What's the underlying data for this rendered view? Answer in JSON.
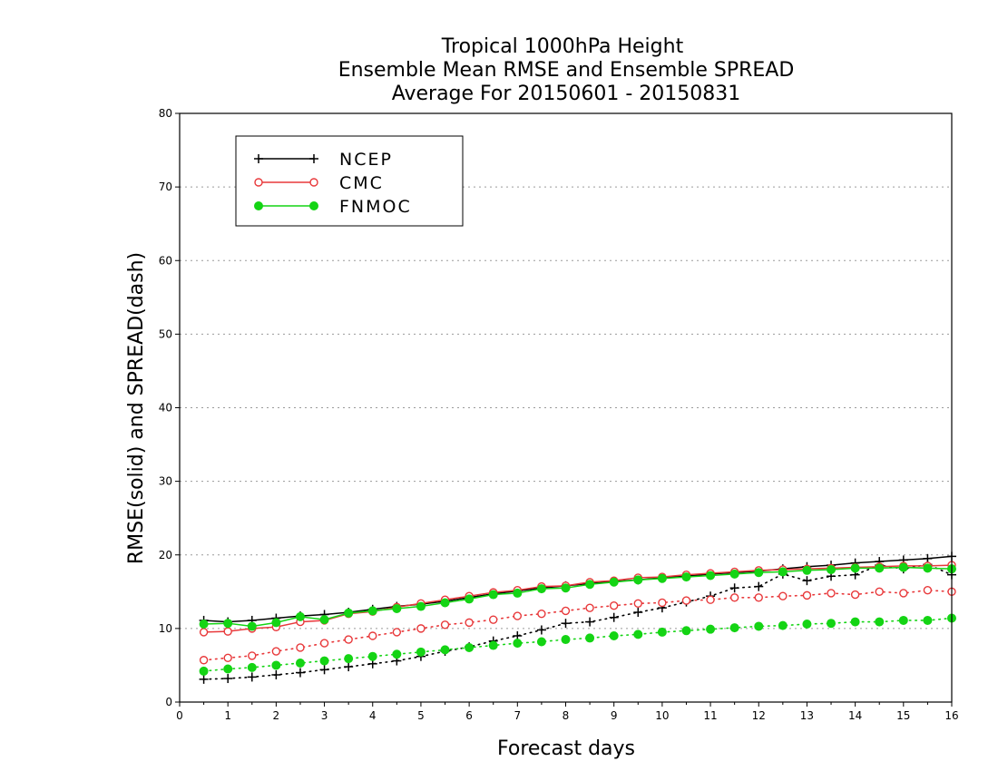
{
  "chart_data": {
    "type": "line",
    "title_lines": [
      "Tropical 1000hPa Height",
      "Ensemble Mean RMSE and Ensemble SPREAD",
      "Average For 20150601 - 20150831"
    ],
    "xlabel": "Forecast days",
    "ylabel": "RMSE(solid) and SPREAD(dash)",
    "xlim": [
      0,
      16
    ],
    "ylim": [
      0,
      80
    ],
    "x_ticks": [
      "0",
      "1",
      "2",
      "3",
      "4",
      "5",
      "6",
      "7",
      "8",
      "9",
      "10",
      "11",
      "12",
      "13",
      "14",
      "15",
      "16"
    ],
    "y_ticks": [
      "0",
      "10",
      "20",
      "30",
      "40",
      "50",
      "60",
      "70",
      "80"
    ],
    "grid": "horizontal dotted",
    "legend_position": "top-left",
    "x": [
      0.5,
      1,
      1.5,
      2,
      2.5,
      3,
      3.5,
      4,
      4.5,
      5,
      5.5,
      6,
      6.5,
      7,
      7.5,
      8,
      8.5,
      9,
      9.5,
      10,
      10.5,
      11,
      11.5,
      12,
      12.5,
      13,
      13.5,
      14,
      14.5,
      15,
      15.5,
      16
    ],
    "series": [
      {
        "name": "NCEP",
        "color": "#000000",
        "marker": "plus",
        "rmse": [
          11.1,
          10.9,
          11.1,
          11.4,
          11.7,
          11.9,
          12.2,
          12.6,
          13.0,
          13.3,
          13.7,
          14.2,
          14.7,
          15.1,
          15.5,
          15.8,
          16.1,
          16.4,
          16.6,
          16.9,
          17.1,
          17.4,
          17.6,
          17.8,
          18.1,
          18.4,
          18.6,
          18.9,
          19.1,
          19.3,
          19.5,
          19.8
        ],
        "spread": [
          3.1,
          3.2,
          3.4,
          3.7,
          4.0,
          4.4,
          4.8,
          5.2,
          5.6,
          6.2,
          6.9,
          7.5,
          8.3,
          9.0,
          9.8,
          10.7,
          10.9,
          11.5,
          12.2,
          12.8,
          13.6,
          14.4,
          15.5,
          15.7,
          17.4,
          16.5,
          17.1,
          17.3,
          18.6,
          18.1,
          18.7,
          17.3
        ]
      },
      {
        "name": "CMC",
        "color": "#e8383a",
        "marker": "open-circle",
        "rmse": [
          9.5,
          9.6,
          10.0,
          10.2,
          10.9,
          11.1,
          12.0,
          12.3,
          12.9,
          13.4,
          13.9,
          14.4,
          14.9,
          15.2,
          15.7,
          15.8,
          16.3,
          16.5,
          16.9,
          17.0,
          17.3,
          17.5,
          17.7,
          17.9,
          18.0,
          18.1,
          18.2,
          18.3,
          18.4,
          18.5,
          18.5,
          18.6
        ],
        "spread": [
          5.7,
          6.0,
          6.3,
          6.9,
          7.4,
          8.0,
          8.5,
          9.0,
          9.5,
          10.0,
          10.5,
          10.8,
          11.2,
          11.7,
          12.0,
          12.4,
          12.8,
          13.1,
          13.4,
          13.5,
          13.8,
          13.9,
          14.2,
          14.2,
          14.4,
          14.5,
          14.8,
          14.6,
          15.0,
          14.8,
          15.2,
          15.0
        ]
      },
      {
        "name": "FNMOC",
        "color": "#14d414",
        "marker": "filled-circle",
        "rmse": [
          10.6,
          10.7,
          10.3,
          10.8,
          11.6,
          11.2,
          12.1,
          12.4,
          12.7,
          13.0,
          13.5,
          14.0,
          14.6,
          14.8,
          15.4,
          15.5,
          16.0,
          16.3,
          16.6,
          16.8,
          17.0,
          17.2,
          17.4,
          17.6,
          17.7,
          17.9,
          18.0,
          18.2,
          18.2,
          18.3,
          18.2,
          18.1
        ],
        "spread": [
          4.2,
          4.5,
          4.7,
          5.0,
          5.3,
          5.6,
          5.9,
          6.2,
          6.5,
          6.8,
          7.1,
          7.4,
          7.7,
          8.0,
          8.2,
          8.5,
          8.7,
          9.0,
          9.2,
          9.5,
          9.7,
          9.9,
          10.1,
          10.3,
          10.4,
          10.6,
          10.7,
          10.9,
          10.9,
          11.1,
          11.1,
          11.4
        ]
      }
    ]
  }
}
